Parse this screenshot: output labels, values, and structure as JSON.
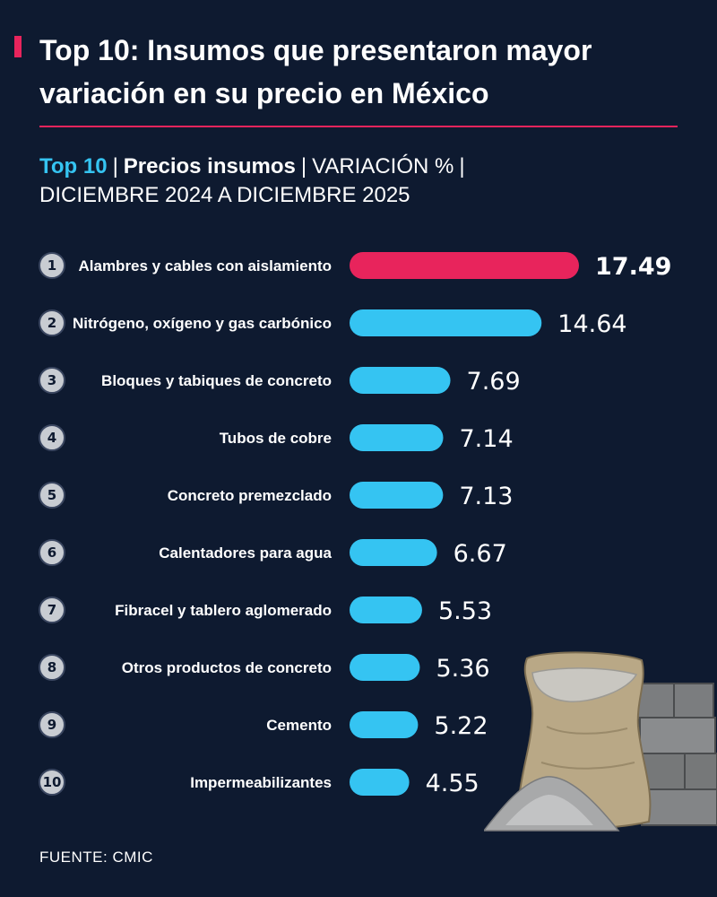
{
  "header": {
    "title_line1": "Top 10: Insumos que presentaron mayor",
    "title_line2": "variación en su precio en México"
  },
  "subheader": {
    "top10": "Top 10",
    "sep": "|",
    "precios": "Precios insumos",
    "variacion": "VARIACIÓN %",
    "line2": "DICIEMBRE 2024 A DICIEMBRE 2025"
  },
  "colors": {
    "background": "#0e1a30",
    "highlight_bar": "#e8245c",
    "bar": "#35c4f2",
    "accent_rule": "#e8245c",
    "number_circle": "#c8ccd2"
  },
  "chart_data": {
    "type": "bar",
    "orientation": "horizontal",
    "title": "Top 10 | Precios insumos | VARIACIÓN % | DICIEMBRE 2024 A DICIEMBRE 2025",
    "ranks": [
      "1",
      "2",
      "3",
      "4",
      "5",
      "6",
      "7",
      "8",
      "9",
      "10"
    ],
    "categories": [
      "Alambres y cables con aislamiento",
      "Nitrógeno, oxígeno y gas carbónico",
      "Bloques y tabiques de concreto",
      "Tubos de cobre",
      "Concreto premezclado",
      "Calentadores para agua",
      "Fibracel y tablero aglomerado",
      "Otros productos de concreto",
      "Cemento",
      "Impermeabilizantes"
    ],
    "values": [
      17.49,
      14.64,
      7.69,
      7.14,
      7.13,
      6.67,
      5.53,
      5.36,
      5.22,
      4.55
    ],
    "value_labels": [
      "17.49",
      "14.64",
      "7.69",
      "7.14",
      "7.13",
      "6.67",
      "5.53",
      "5.36",
      "5.22",
      "4.55"
    ],
    "highlight_index": 0,
    "xlim": [
      0,
      17.49
    ],
    "ylabel": "",
    "xlabel": ""
  },
  "footer": {
    "source": "FUENTE: CMIC"
  },
  "illustration": {
    "icon": "cement-sack-and-blocks-icon"
  }
}
